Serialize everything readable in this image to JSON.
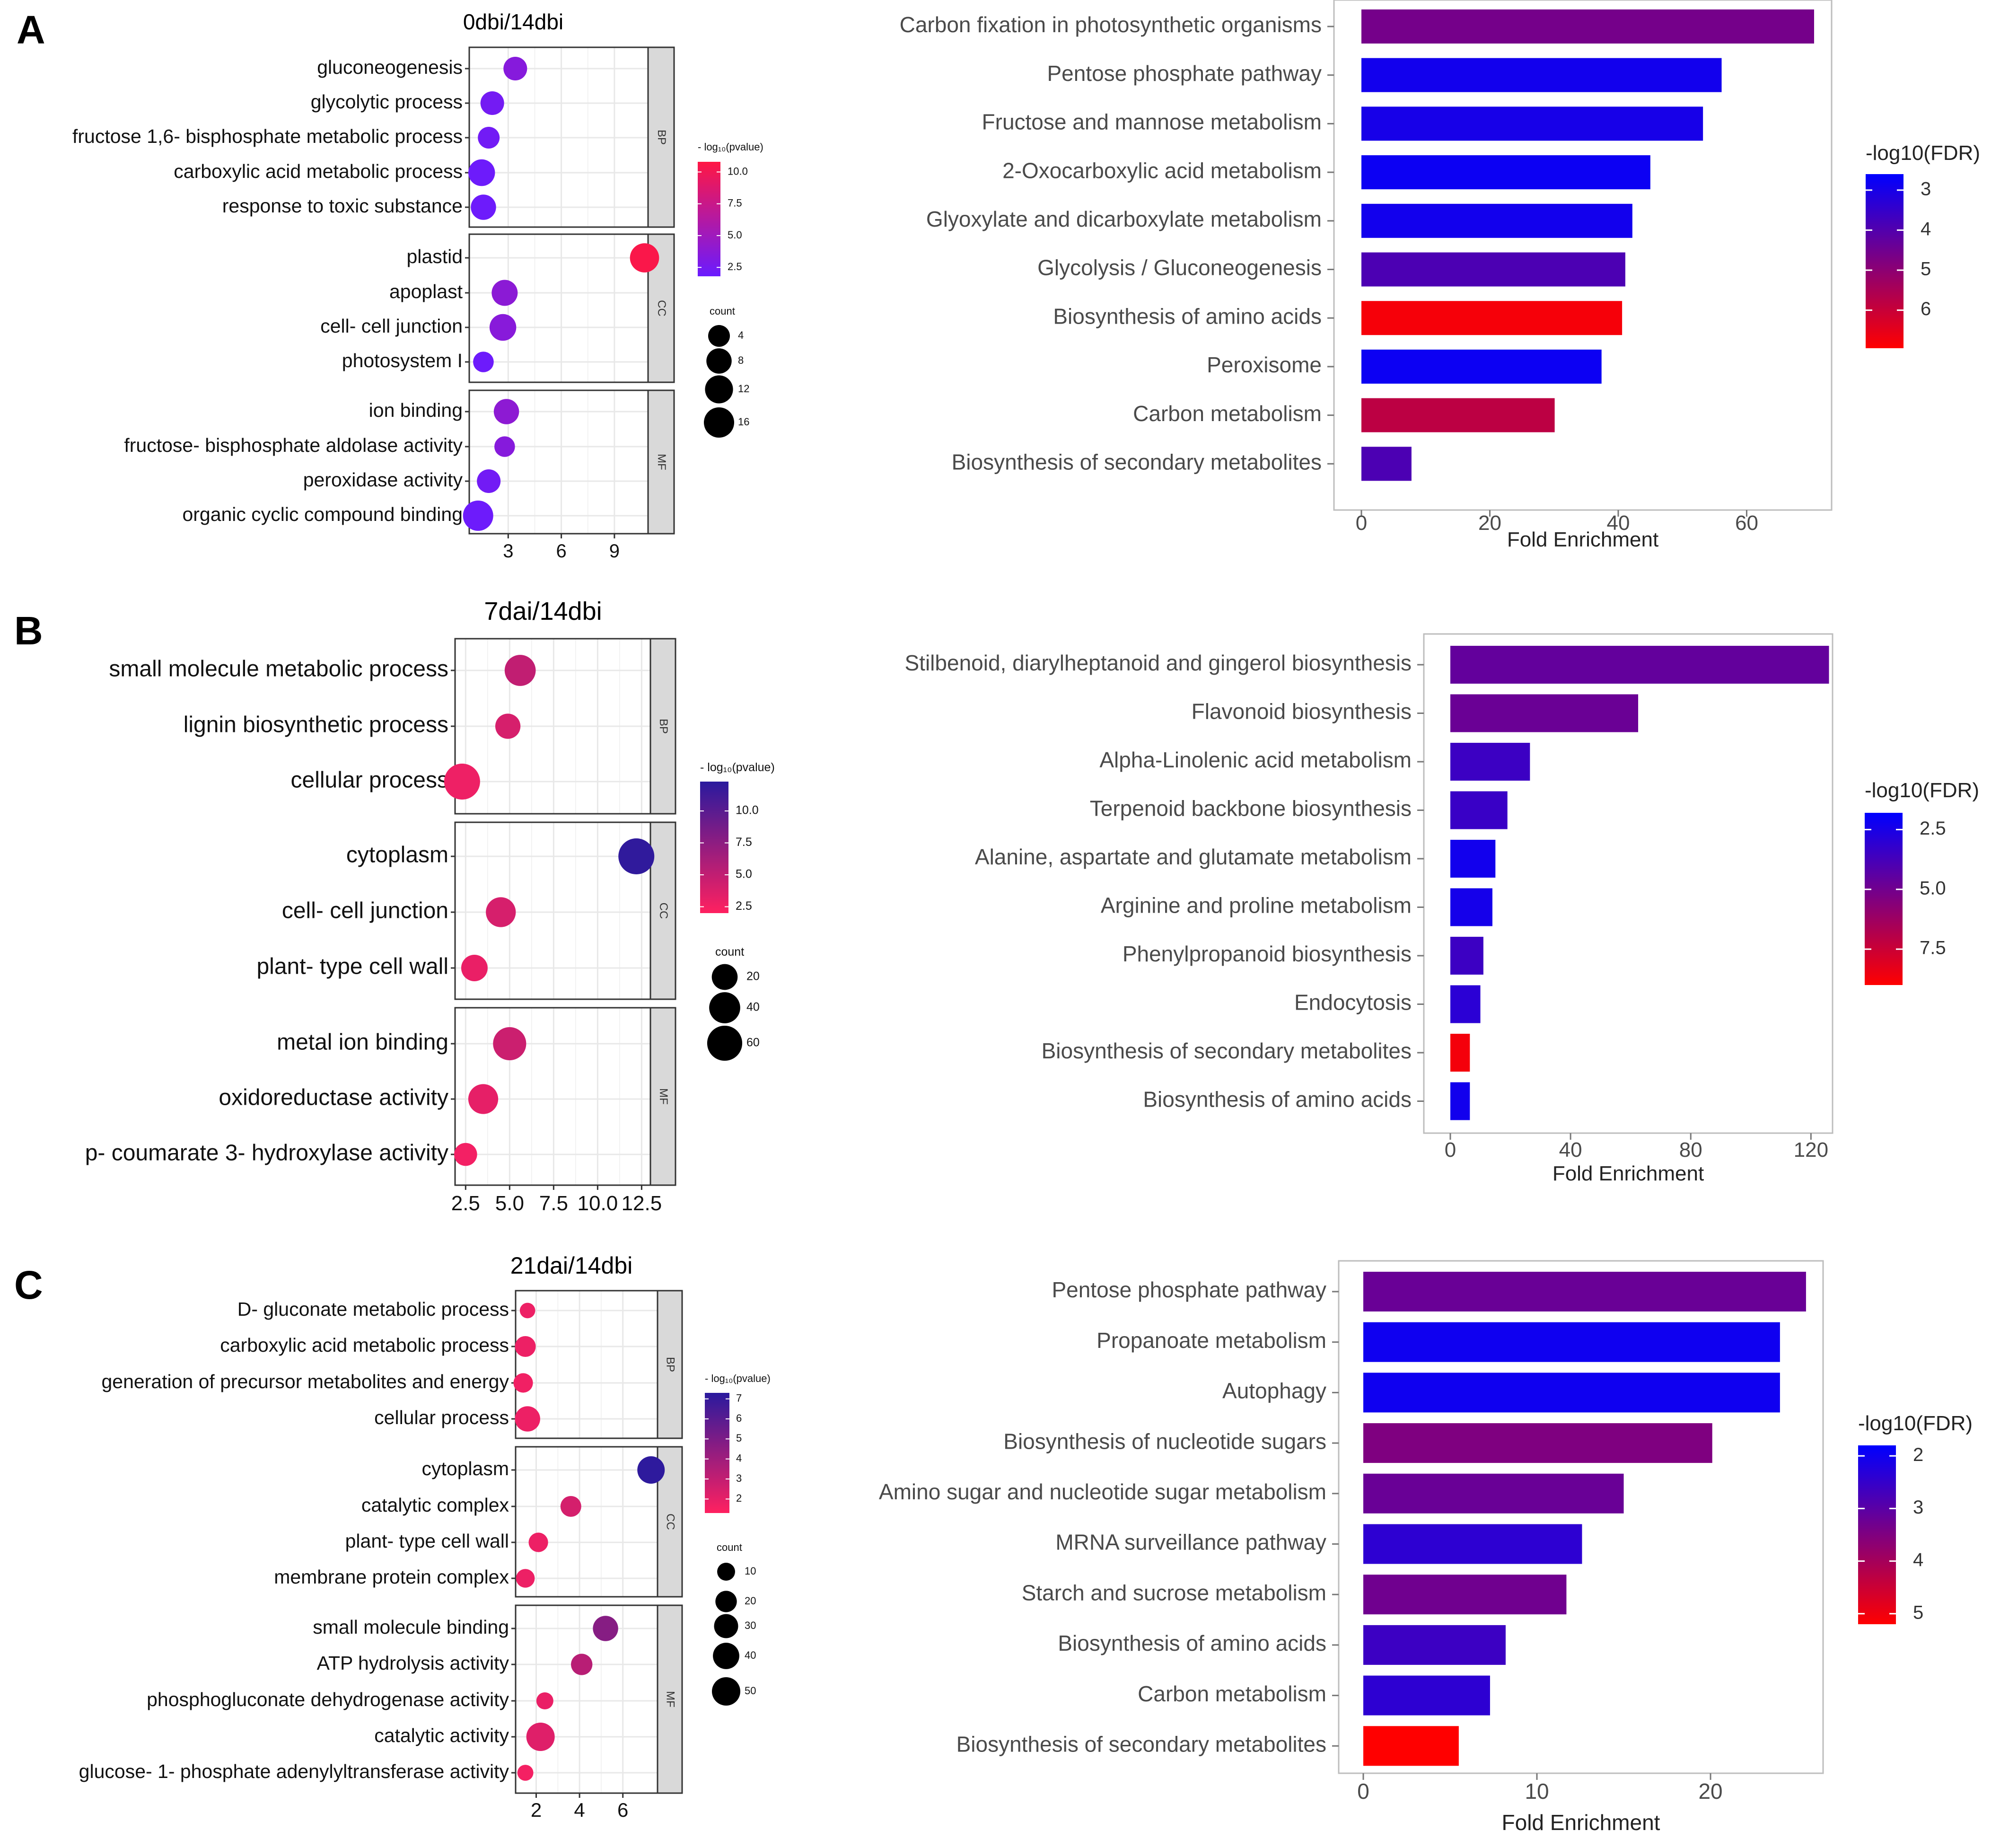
{
  "chart_data": [
    {
      "panel": "A",
      "dot": {
        "type": "scatter",
        "title": "0dbi/14dbi",
        "xticks": [
          3,
          6,
          9
        ],
        "xlim": [
          0.8,
          10.9
        ],
        "groups": [
          {
            "name": "BP",
            "terms": [
              {
                "label": "gluconeogenesis",
                "x": 3.4,
                "p": 3.5,
                "count": 6
              },
              {
                "label": "glycolytic process",
                "x": 2.1,
                "p": 2.4,
                "count": 6
              },
              {
                "label": "fructose 1,6- bisphosphate metabolic process",
                "x": 1.9,
                "p": 2.3,
                "count": 4
              },
              {
                "label": "carboxylic acid metabolic process",
                "x": 1.5,
                "p": 2.0,
                "count": 10
              },
              {
                "label": "response to toxic substance",
                "x": 1.6,
                "p": 2.0,
                "count": 8
              }
            ]
          },
          {
            "name": "CC",
            "terms": [
              {
                "label": "plastid",
                "x": 10.7,
                "p": 10.5,
                "count": 14
              },
              {
                "label": "apoplast",
                "x": 2.8,
                "p": 3.8,
                "count": 9
              },
              {
                "label": "cell- cell junction",
                "x": 2.7,
                "p": 3.6,
                "count": 10
              },
              {
                "label": "photosystem I",
                "x": 1.6,
                "p": 2.0,
                "count": 3
              }
            ]
          },
          {
            "name": "MF",
            "terms": [
              {
                "label": "ion binding",
                "x": 2.9,
                "p": 3.9,
                "count": 8
              },
              {
                "label": "fructose- bisphosphate aldolase activity",
                "x": 2.8,
                "p": 3.5,
                "count": 3
              },
              {
                "label": "peroxidase activity",
                "x": 1.9,
                "p": 2.3,
                "count": 6
              },
              {
                "label": "organic cyclic compound binding",
                "x": 1.3,
                "p": 2.0,
                "count": 16
              }
            ]
          }
        ],
        "color_legend": {
          "title": "- log₁₀(pvalue)",
          "ticks": [
            "10.0",
            "7.5",
            "5.0",
            "2.5"
          ],
          "range": [
            1.8,
            10.8
          ],
          "high_color": "#FF1744",
          "low_color": "#6A1BFF"
        },
        "size_legend": {
          "title": "count",
          "values": [
            4,
            8,
            12,
            16
          ]
        }
      },
      "bar": {
        "type": "bar",
        "orientation": "horizontal",
        "xlabel": "Fold Enrichment",
        "xticks": [
          0,
          20,
          40,
          60
        ],
        "xlim": [
          -3,
          74.5
        ],
        "categories": [
          "Carbon fixation in photosynthetic organisms",
          "Pentose phosphate pathway",
          "Fructose and mannose metabolism",
          "2-Oxocarboxylic acid metabolism",
          "Glyoxylate and dicarboxylate metabolism",
          "Glycolysis / Gluconeogenesis",
          "Biosynthesis of amino acids",
          "Peroxisome",
          "Carbon metabolism",
          "Biosynthesis of secondary metabolites"
        ],
        "values": [
          70.5,
          56.1,
          53.2,
          45.0,
          42.2,
          41.1,
          40.6,
          37.4,
          30.1,
          7.8
        ],
        "fdr": [
          4.6,
          2.9,
          3.0,
          2.8,
          2.9,
          3.9,
          6.8,
          2.8,
          5.8,
          3.9
        ],
        "color_legend": {
          "title": "-log10(FDR)",
          "ticks": [
            "3",
            "4",
            "5",
            "6"
          ],
          "tick_values": [
            3,
            4,
            5,
            6
          ],
          "range": [
            2.6,
            6.95
          ],
          "high_color": "#FF0000",
          "low_color": "#0000FF"
        }
      }
    },
    {
      "panel": "B",
      "dot": {
        "type": "scatter",
        "title": "7dai/14dbi",
        "xticks": [
          "2.5",
          "5.0",
          "7.5",
          "10.0",
          "12.5"
        ],
        "xtick_values": [
          2.5,
          5.0,
          7.5,
          10.0,
          12.5
        ],
        "xlim": [
          1.9,
          13.0
        ],
        "groups": [
          {
            "name": "BP",
            "terms": [
              {
                "label": "small molecule metabolic process",
                "x": 5.6,
                "p": 5.0,
                "count": 40
              },
              {
                "label": "lignin biosynthetic process",
                "x": 4.9,
                "p": 4.0,
                "count": 18
              },
              {
                "label": "cellular process",
                "x": 2.3,
                "p": 2.8,
                "count": 65
              }
            ]
          },
          {
            "name": "CC",
            "terms": [
              {
                "label": "cytoplasm",
                "x": 12.2,
                "p": 12.0,
                "count": 65
              },
              {
                "label": "cell- cell junction",
                "x": 4.5,
                "p": 4.0,
                "count": 35
              },
              {
                "label": "plant- type cell wall",
                "x": 3.0,
                "p": 3.0,
                "count": 22
              }
            ]
          },
          {
            "name": "MF",
            "terms": [
              {
                "label": "metal ion binding",
                "x": 5.0,
                "p": 4.5,
                "count": 50
              },
              {
                "label": "oxidoreductase activity",
                "x": 3.5,
                "p": 3.2,
                "count": 35
              },
              {
                "label": "p- coumarate 3- hydroxylase activity",
                "x": 2.5,
                "p": 2.6,
                "count": 12
              }
            ]
          }
        ],
        "color_legend": {
          "title": "- log₁₀(pvalue)",
          "ticks": [
            "10.0",
            "7.5",
            "5.0",
            "2.5"
          ],
          "range": [
            2.0,
            12.3
          ],
          "high_color": "#2A1A9E",
          "low_color": "#FF2060"
        },
        "size_legend": {
          "title": "count",
          "values": [
            20,
            40,
            60
          ]
        }
      },
      "bar": {
        "type": "bar",
        "orientation": "horizontal",
        "xlabel": "Fold Enrichment",
        "xticks": [
          0,
          40,
          80,
          120
        ],
        "xlim": [
          -6,
          130
        ],
        "categories": [
          "Stilbenoid, diarylheptanoid and gingerol biosynthesis",
          "Flavonoid biosynthesis",
          "Alpha-Linolenic acid metabolism",
          "Terpenoid backbone biosynthesis",
          "Alanine, aspartate and glutamate metabolism",
          "Arginine and proline metabolism",
          "Phenylpropanoid biosynthesis",
          "Endocytosis",
          "Biosynthesis of secondary metabolites",
          "Biosynthesis of amino acids"
        ],
        "values": [
          126.0,
          62.5,
          26.5,
          19.0,
          15.0,
          14.0,
          11.0,
          10.0,
          6.5,
          6.5
        ],
        "fdr": [
          4.6,
          4.8,
          3.5,
          3.4,
          2.3,
          2.4,
          3.5,
          3.0,
          8.7,
          2.3
        ],
        "color_legend": {
          "title": "-log10(FDR)",
          "ticks": [
            "2.5",
            "5.0",
            "7.5"
          ],
          "tick_values": [
            2.5,
            5.0,
            7.5
          ],
          "range": [
            1.8,
            9.0
          ],
          "high_color": "#FF0000",
          "low_color": "#0000FF"
        }
      }
    },
    {
      "panel": "C",
      "dot": {
        "type": "scatter",
        "title": "21dai/14dbi",
        "xticks": [
          2,
          4,
          6
        ],
        "xlim": [
          1.05,
          7.6
        ],
        "groups": [
          {
            "name": "BP",
            "terms": [
              {
                "label": "D- gluconate metabolic process",
                "x": 1.6,
                "p": 1.8,
                "count": 5
              },
              {
                "label": "carboxylic acid metabolic process",
                "x": 1.5,
                "p": 1.8,
                "count": 18
              },
              {
                "label": "generation of precursor metabolites and energy",
                "x": 1.4,
                "p": 1.7,
                "count": 14
              },
              {
                "label": "cellular process",
                "x": 1.6,
                "p": 1.8,
                "count": 35
              }
            ]
          },
          {
            "name": "CC",
            "terms": [
              {
                "label": "cytoplasm",
                "x": 7.3,
                "p": 7.2,
                "count": 45
              },
              {
                "label": "catalytic complex",
                "x": 3.6,
                "p": 2.5,
                "count": 18
              },
              {
                "label": "plant- type cell wall",
                "x": 2.1,
                "p": 1.8,
                "count": 14
              },
              {
                "label": "membrane protein complex",
                "x": 1.5,
                "p": 1.8,
                "count": 12
              }
            ]
          },
          {
            "name": "MF",
            "terms": [
              {
                "label": "small molecule binding",
                "x": 5.2,
                "p": 4.7,
                "count": 35
              },
              {
                "label": "ATP hydrolysis activity",
                "x": 4.1,
                "p": 3.3,
                "count": 20
              },
              {
                "label": "phosphogluconate dehydrogenase activity",
                "x": 2.4,
                "p": 1.9,
                "count": 8
              },
              {
                "label": "catalytic activity",
                "x": 2.2,
                "p": 2.2,
                "count": 50
              },
              {
                "label": "glucose- 1- phosphate adenylyltransferase activity",
                "x": 1.5,
                "p": 1.6,
                "count": 6
              }
            ]
          }
        ],
        "color_legend": {
          "title": "- log₁₀(pvalue)",
          "ticks": [
            "7",
            "6",
            "5",
            "4",
            "3",
            "2"
          ],
          "range": [
            1.3,
            7.3
          ],
          "high_color": "#2A1A9E",
          "low_color": "#FF2060"
        },
        "size_legend": {
          "title": "count",
          "values": [
            10,
            20,
            30,
            40,
            50
          ]
        }
      },
      "bar": {
        "type": "bar",
        "orientation": "horizontal",
        "xlabel": "Fold Enrichment",
        "xticks": [
          0,
          10,
          20
        ],
        "xlim": [
          -1.3,
          26.6
        ],
        "categories": [
          "Pentose phosphate pathway",
          "Propanoate metabolism",
          "Autophagy",
          "Biosynthesis of nucleotide sugars",
          "Amino sugar and nucleotide sugar metabolism",
          "MRNA surveillance pathway",
          "Starch and sucrose metabolism",
          "Biosynthesis of amino acids",
          "Carbon metabolism",
          "Biosynthesis of secondary metabolites"
        ],
        "values": [
          25.5,
          24.0,
          24.0,
          20.1,
          15.0,
          12.6,
          11.7,
          8.2,
          7.3,
          5.5
        ],
        "fdr": [
          3.2,
          2.0,
          2.0,
          3.5,
          3.2,
          2.4,
          3.3,
          2.6,
          2.4,
          5.3
        ],
        "color_legend": {
          "title": "-log10(FDR)",
          "ticks": [
            "2",
            "3",
            "4",
            "5"
          ],
          "tick_values": [
            2,
            3,
            4,
            5
          ],
          "range": [
            1.8,
            5.2
          ],
          "high_color": "#FF0000",
          "low_color": "#0000FF"
        }
      }
    }
  ]
}
